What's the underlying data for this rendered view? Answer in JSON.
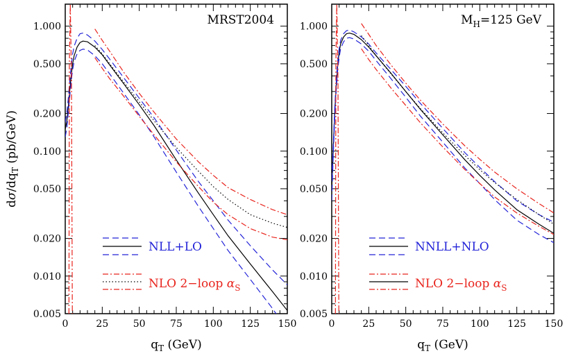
{
  "chart_data": [
    {
      "type": "line",
      "panel": "left",
      "annotation": "MRST2004",
      "xlabel": "q_T (GeV)",
      "ylabel": "dσ/dq_T (pb/GeV)",
      "xlim": [
        0,
        150
      ],
      "ylim": [
        0.005,
        1.5
      ],
      "yscale": "log",
      "xticks": [
        "0",
        "25",
        "50",
        "75",
        "100",
        "125",
        "150"
      ],
      "yticks": [
        "0.005",
        "0.010",
        "0.020",
        "0.050",
        "0.100",
        "0.200",
        "0.500",
        "1.000"
      ],
      "legend": {
        "resummed_label": "NLL+LO",
        "fixed_label": "NLO 2−loop α_S",
        "fixed_base": "NLO 2−loop ",
        "alpha": "α",
        "alpha_sub": "S"
      },
      "series": [
        {
          "name": "NLL+LO central",
          "style": "solid",
          "color": "#000000",
          "x": [
            0,
            1,
            2,
            3,
            4,
            5,
            6,
            8,
            10,
            12,
            15,
            20,
            25,
            30,
            40,
            50,
            60,
            75,
            90,
            100,
            110,
            125,
            140,
            150
          ],
          "y": [
            0.15,
            0.17,
            0.22,
            0.3,
            0.4,
            0.5,
            0.58,
            0.68,
            0.74,
            0.76,
            0.75,
            0.68,
            0.59,
            0.49,
            0.34,
            0.235,
            0.16,
            0.085,
            0.046,
            0.031,
            0.021,
            0.0125,
            0.0075,
            0.0053
          ]
        },
        {
          "name": "NLL+LO upper",
          "style": "dashed",
          "color": "#2323d8",
          "x": [
            0,
            1,
            2,
            3,
            4,
            5,
            6,
            8,
            10,
            12,
            15,
            20,
            25,
            30,
            40,
            50,
            60,
            75,
            90,
            100,
            110,
            125,
            140,
            150
          ],
          "y": [
            0.17,
            0.2,
            0.26,
            0.36,
            0.48,
            0.6,
            0.69,
            0.8,
            0.87,
            0.88,
            0.85,
            0.76,
            0.65,
            0.545,
            0.38,
            0.265,
            0.185,
            0.102,
            0.057,
            0.04,
            0.028,
            0.0175,
            0.0112,
            0.0085
          ]
        },
        {
          "name": "NLL+LO lower",
          "style": "dashed",
          "color": "#2323d8",
          "x": [
            0,
            1,
            2,
            3,
            4,
            5,
            6,
            8,
            10,
            12,
            15,
            20,
            25,
            30,
            40,
            50,
            60,
            75,
            90,
            100,
            110,
            125,
            140,
            150
          ],
          "y": [
            0.13,
            0.15,
            0.2,
            0.27,
            0.36,
            0.45,
            0.52,
            0.6,
            0.64,
            0.655,
            0.645,
            0.58,
            0.5,
            0.415,
            0.285,
            0.195,
            0.13,
            0.068,
            0.036,
            0.024,
            0.016,
            0.0094,
            0.0055,
            0.0037
          ]
        },
        {
          "name": "NLO central",
          "style": "dotted",
          "color": "#000000",
          "x": [
            20,
            25,
            30,
            40,
            50,
            60,
            75,
            90,
            100,
            110,
            125,
            140,
            150
          ],
          "y": [
            0.7,
            0.6,
            0.5,
            0.35,
            0.248,
            0.175,
            0.107,
            0.069,
            0.052,
            0.041,
            0.031,
            0.0265,
            0.0245
          ]
        },
        {
          "name": "NLO upper",
          "style": "dashdot",
          "color": "#e8231c",
          "x": [
            20,
            25,
            30,
            40,
            50,
            60,
            75,
            90,
            100,
            110,
            125,
            140,
            150
          ],
          "y": [
            0.95,
            0.77,
            0.63,
            0.42,
            0.29,
            0.205,
            0.125,
            0.082,
            0.064,
            0.051,
            0.041,
            0.034,
            0.031
          ]
        },
        {
          "name": "NLO lower",
          "style": "dashdot",
          "color": "#e8231c",
          "x": [
            20,
            25,
            30,
            40,
            50,
            60,
            75,
            90,
            100,
            110,
            125,
            140,
            150
          ],
          "y": [
            0.56,
            0.46,
            0.38,
            0.27,
            0.19,
            0.135,
            0.082,
            0.052,
            0.039,
            0.031,
            0.024,
            0.0205,
            0.0195
          ]
        },
        {
          "name": "NLO low-qT divergence",
          "style": "dashdot",
          "color": "#e8231c",
          "x": [
            2.5,
            2.8,
            3.4,
            4.2,
            4.8
          ],
          "y": [
            0.005,
            0.5,
            1.5,
            0.4,
            0.005
          ]
        }
      ]
    },
    {
      "type": "line",
      "panel": "right",
      "annotation": "M_H=125 GeV",
      "annotation_parts": {
        "m": "M",
        "sub": "H",
        "rest": "=125 GeV"
      },
      "xlabel": "q_T (GeV)",
      "ylabel": "dσ/dq_T (pb/GeV)",
      "xlim": [
        0,
        150
      ],
      "ylim": [
        0.005,
        1.5
      ],
      "yscale": "log",
      "xticks": [
        "0",
        "25",
        "50",
        "75",
        "100",
        "125",
        "150"
      ],
      "yticks": [
        "0.005",
        "0.010",
        "0.020",
        "0.050",
        "0.100",
        "0.200",
        "0.500",
        "1.000"
      ],
      "legend": {
        "resummed_label": "NNLL+NLO",
        "fixed_label": "NLO 2−loop α_S",
        "fixed_base": "NLO 2−loop ",
        "alpha": "α",
        "alpha_sub": "S"
      },
      "series": [
        {
          "name": "NNLL+NLO central",
          "style": "solid",
          "color": "#000000",
          "x": [
            0,
            1,
            2,
            3,
            4,
            5,
            6,
            8,
            10,
            12,
            15,
            20,
            25,
            30,
            40,
            50,
            60,
            75,
            90,
            100,
            110,
            125,
            140,
            150
          ],
          "y": [
            0.05,
            0.1,
            0.2,
            0.33,
            0.48,
            0.62,
            0.72,
            0.82,
            0.87,
            0.88,
            0.86,
            0.78,
            0.68,
            0.58,
            0.42,
            0.3,
            0.215,
            0.135,
            0.085,
            0.064,
            0.049,
            0.034,
            0.026,
            0.022
          ]
        },
        {
          "name": "NNLL+NLO upper",
          "style": "dashed",
          "color": "#2323d8",
          "x": [
            0,
            1,
            2,
            3,
            4,
            5,
            6,
            8,
            10,
            12,
            15,
            20,
            25,
            30,
            40,
            50,
            60,
            75,
            90,
            100,
            110,
            125,
            140,
            150
          ],
          "y": [
            0.06,
            0.11,
            0.22,
            0.36,
            0.52,
            0.66,
            0.77,
            0.87,
            0.92,
            0.93,
            0.9,
            0.82,
            0.72,
            0.61,
            0.45,
            0.33,
            0.24,
            0.152,
            0.097,
            0.074,
            0.057,
            0.04,
            0.031,
            0.027
          ]
        },
        {
          "name": "NNLL+NLO lower",
          "style": "dashed",
          "color": "#2323d8",
          "x": [
            0,
            1,
            2,
            3,
            4,
            5,
            6,
            8,
            10,
            12,
            15,
            20,
            25,
            30,
            40,
            50,
            60,
            75,
            90,
            100,
            110,
            125,
            140,
            150
          ],
          "y": [
            0.04,
            0.09,
            0.18,
            0.3,
            0.44,
            0.56,
            0.66,
            0.75,
            0.8,
            0.81,
            0.79,
            0.72,
            0.63,
            0.53,
            0.38,
            0.27,
            0.19,
            0.118,
            0.073,
            0.055,
            0.041,
            0.028,
            0.0215,
            0.0185
          ]
        },
        {
          "name": "NLO central",
          "style": "dotted",
          "color": "#000000",
          "x": [
            20,
            25,
            30,
            40,
            50,
            60,
            75,
            90,
            100,
            110,
            125,
            140,
            150
          ],
          "y": [
            0.84,
            0.7,
            0.58,
            0.415,
            0.3,
            0.218,
            0.14,
            0.092,
            0.071,
            0.056,
            0.041,
            0.031,
            0.026
          ]
        },
        {
          "name": "NLO upper",
          "style": "dashdot",
          "color": "#e8231c",
          "x": [
            20,
            25,
            30,
            40,
            50,
            60,
            75,
            90,
            100,
            110,
            125,
            140,
            150
          ],
          "y": [
            1.05,
            0.86,
            0.7,
            0.49,
            0.35,
            0.255,
            0.165,
            0.11,
            0.086,
            0.068,
            0.05,
            0.038,
            0.032
          ]
        },
        {
          "name": "NLO lower",
          "style": "dashdot",
          "color": "#e8231c",
          "x": [
            20,
            25,
            30,
            40,
            50,
            60,
            75,
            90,
            100,
            110,
            125,
            140,
            150
          ],
          "y": [
            0.66,
            0.54,
            0.45,
            0.32,
            0.232,
            0.168,
            0.108,
            0.071,
            0.055,
            0.043,
            0.032,
            0.025,
            0.0215
          ]
        },
        {
          "name": "NLO low-qT divergence",
          "style": "dashdot",
          "color": "#e8231c",
          "x": [
            2.5,
            2.8,
            3.4,
            4.2,
            4.8
          ],
          "y": [
            0.005,
            0.5,
            1.5,
            0.4,
            0.005
          ]
        }
      ]
    }
  ]
}
